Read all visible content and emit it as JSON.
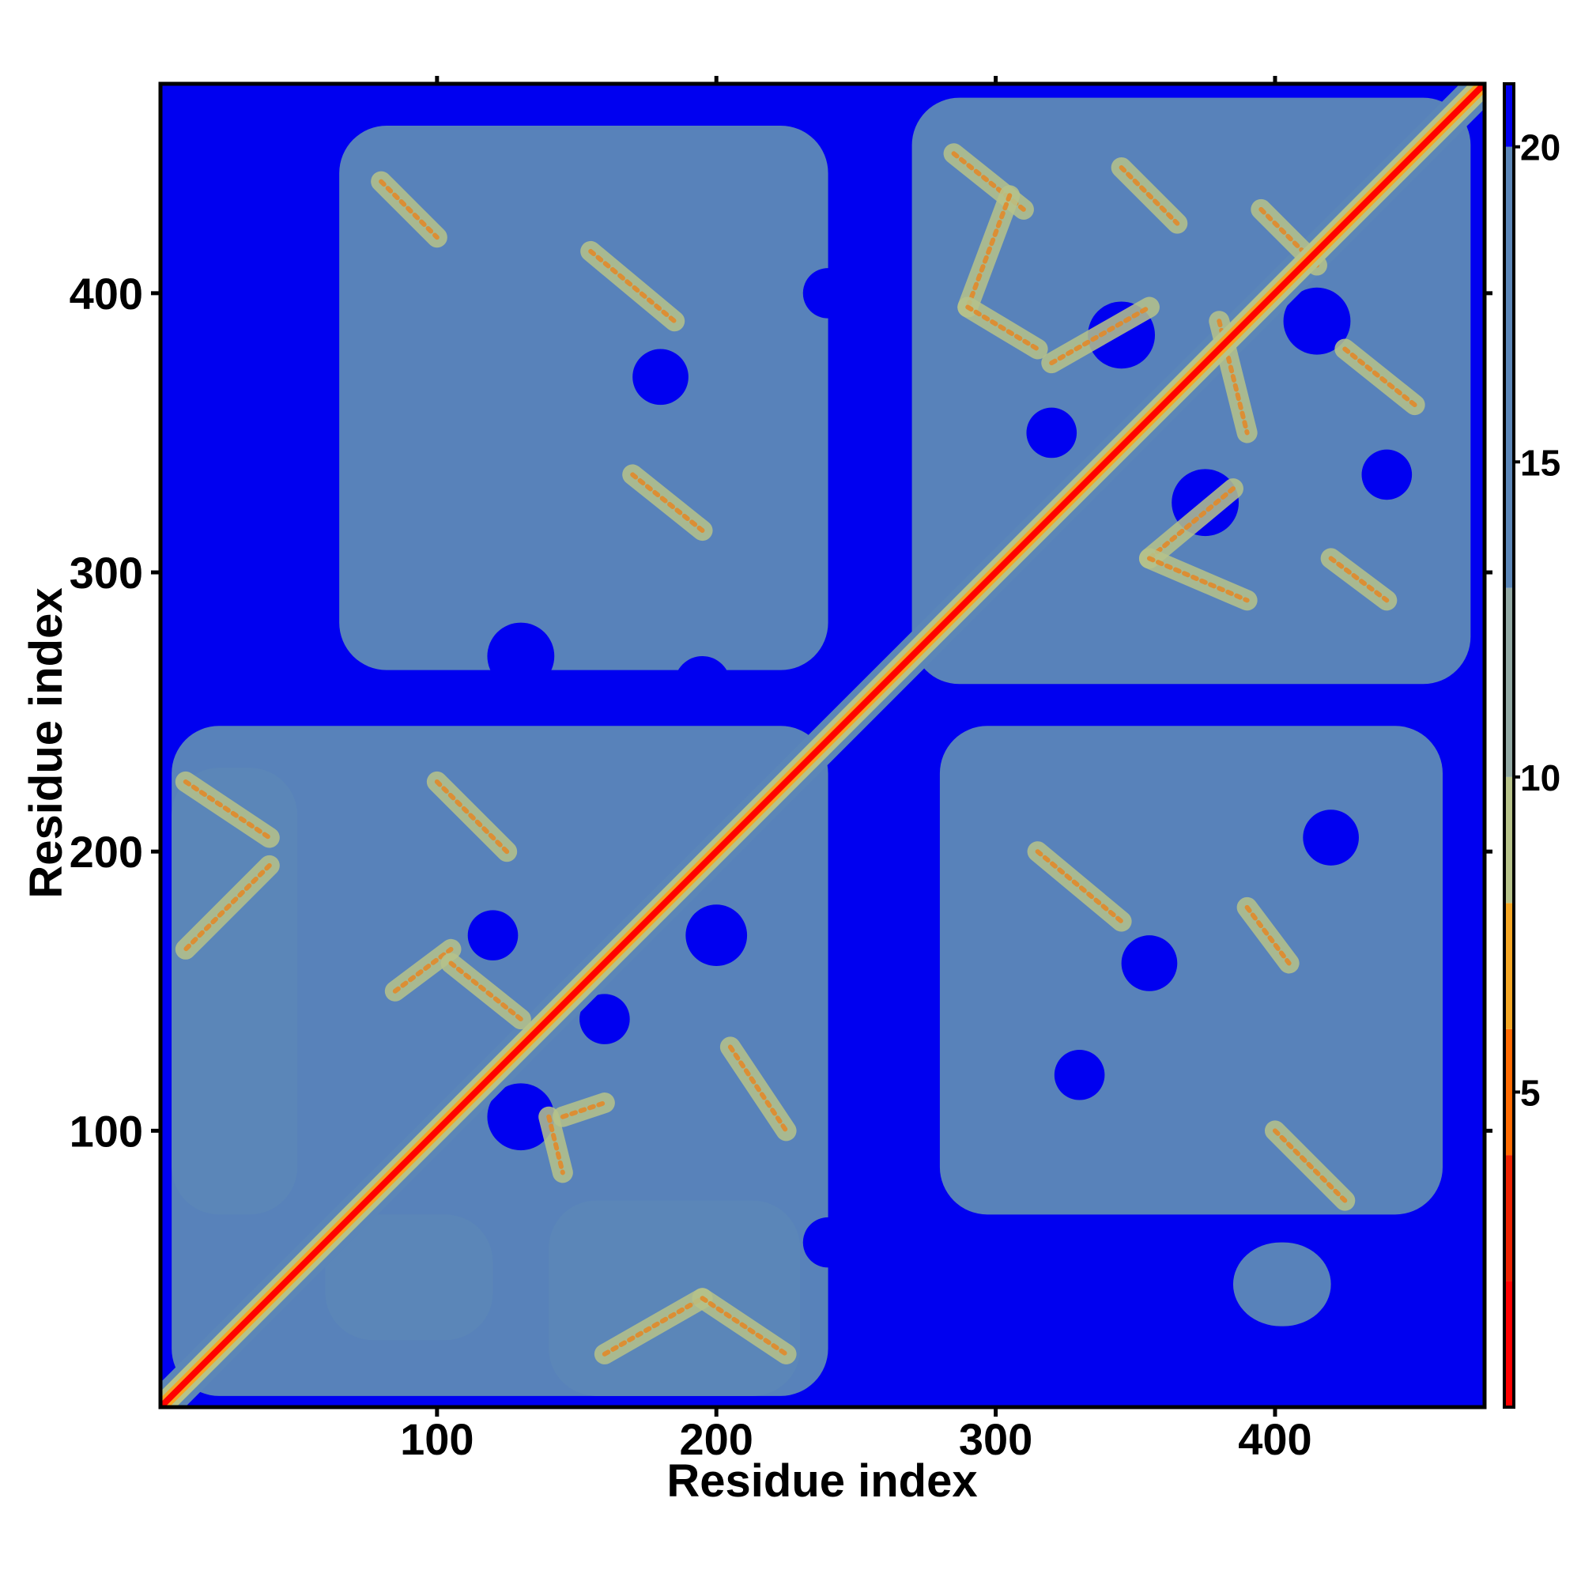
{
  "chart_data": {
    "type": "heatmap",
    "title": "",
    "xlabel": "Residue index",
    "ylabel": "Residue index",
    "xlim": [
      1,
      475
    ],
    "ylim": [
      1,
      475
    ],
    "x_ticks": [
      100,
      200,
      300,
      400
    ],
    "y_ticks": [
      100,
      200,
      300,
      400
    ],
    "colorbar": {
      "range": [
        0,
        21
      ],
      "ticks": [
        5,
        10,
        15,
        20
      ],
      "colors": [
        {
          "from": 0,
          "to": 2,
          "color": "#ff0000"
        },
        {
          "from": 2,
          "to": 4,
          "color": "#ee2200"
        },
        {
          "from": 4,
          "to": 6,
          "color": "#ff6a00"
        },
        {
          "from": 6,
          "to": 8,
          "color": "#f5a623"
        },
        {
          "from": 8,
          "to": 10,
          "color": "#b7c38a"
        },
        {
          "from": 10,
          "to": 13,
          "color": "#92a9a4"
        },
        {
          "from": 13,
          "to": 20,
          "color": "#5b86b8"
        },
        {
          "from": 20,
          "to": 21,
          "color": "#0000f0"
        }
      ]
    },
    "background_color": "#0000f0",
    "contact_color": "#5b86b8",
    "close_color": "#b7c38a",
    "diagonal_color": "#ff0000",
    "domains": [
      {
        "name": "",
        "range": [
          1,
          240
        ]
      },
      {
        "name": "",
        "range": [
          270,
          475
        ]
      }
    ],
    "contact_regions": [
      {
        "x": [
          5,
          240
        ],
        "y": [
          5,
          245
        ]
      },
      {
        "x": [
          270,
          470
        ],
        "y": [
          260,
          470
        ]
      },
      {
        "x": [
          65,
          240
        ],
        "y": [
          265,
          460
        ]
      },
      {
        "x": [
          280,
          460
        ],
        "y": [
          70,
          245
        ]
      },
      {
        "x": [
          140,
          230
        ],
        "y": [
          5,
          75
        ]
      },
      {
        "x": [
          60,
          120
        ],
        "y": [
          25,
          70
        ]
      },
      {
        "x": [
          385,
          420
        ],
        "y": [
          30,
          60
        ]
      },
      {
        "x": [
          5,
          50
        ],
        "y": [
          70,
          230
        ]
      }
    ],
    "contact_bands": [
      {
        "from": [
          10,
          225
        ],
        "to": [
          40,
          205
        ]
      },
      {
        "from": [
          40,
          195
        ],
        "to": [
          10,
          165
        ]
      },
      {
        "from": [
          100,
          225
        ],
        "to": [
          125,
          200
        ]
      },
      {
        "from": [
          85,
          150
        ],
        "to": [
          105,
          165
        ]
      },
      {
        "from": [
          105,
          160
        ],
        "to": [
          130,
          140
        ]
      },
      {
        "from": [
          140,
          105
        ],
        "to": [
          145,
          85
        ]
      },
      {
        "from": [
          145,
          105
        ],
        "to": [
          160,
          110
        ]
      },
      {
        "from": [
          205,
          130
        ],
        "to": [
          225,
          100
        ]
      },
      {
        "from": [
          160,
          20
        ],
        "to": [
          195,
          40
        ]
      },
      {
        "from": [
          195,
          40
        ],
        "to": [
          225,
          20
        ]
      },
      {
        "from": [
          80,
          440
        ],
        "to": [
          100,
          420
        ]
      },
      {
        "from": [
          155,
          415
        ],
        "to": [
          185,
          390
        ]
      },
      {
        "from": [
          170,
          335
        ],
        "to": [
          195,
          315
        ]
      },
      {
        "from": [
          285,
          450
        ],
        "to": [
          310,
          430
        ]
      },
      {
        "from": [
          305,
          435
        ],
        "to": [
          290,
          395
        ]
      },
      {
        "from": [
          290,
          395
        ],
        "to": [
          315,
          380
        ]
      },
      {
        "from": [
          320,
          375
        ],
        "to": [
          355,
          395
        ]
      },
      {
        "from": [
          345,
          445
        ],
        "to": [
          365,
          425
        ]
      },
      {
        "from": [
          395,
          430
        ],
        "to": [
          415,
          410
        ]
      },
      {
        "from": [
          380,
          390
        ],
        "to": [
          390,
          350
        ]
      },
      {
        "from": [
          385,
          330
        ],
        "to": [
          355,
          305
        ]
      },
      {
        "from": [
          355,
          305
        ],
        "to": [
          390,
          290
        ]
      },
      {
        "from": [
          420,
          305
        ],
        "to": [
          440,
          290
        ]
      },
      {
        "from": [
          425,
          380
        ],
        "to": [
          450,
          360
        ]
      },
      {
        "from": [
          315,
          200
        ],
        "to": [
          345,
          175
        ]
      },
      {
        "from": [
          390,
          180
        ],
        "to": [
          405,
          160
        ]
      },
      {
        "from": [
          400,
          100
        ],
        "to": [
          425,
          75
        ]
      }
    ],
    "holes": [
      {
        "x": 130,
        "y": 270,
        "r": 12
      },
      {
        "x": 195,
        "y": 260,
        "r": 10
      },
      {
        "x": 180,
        "y": 370,
        "r": 10
      },
      {
        "x": 240,
        "y": 400,
        "r": 9
      },
      {
        "x": 130,
        "y": 105,
        "r": 12
      },
      {
        "x": 120,
        "y": 170,
        "r": 9
      },
      {
        "x": 200,
        "y": 170,
        "r": 11
      },
      {
        "x": 160,
        "y": 140,
        "r": 9
      },
      {
        "x": 345,
        "y": 385,
        "r": 12
      },
      {
        "x": 415,
        "y": 390,
        "r": 12
      },
      {
        "x": 375,
        "y": 325,
        "r": 12
      },
      {
        "x": 440,
        "y": 335,
        "r": 9
      },
      {
        "x": 320,
        "y": 350,
        "r": 9
      },
      {
        "x": 355,
        "y": 160,
        "r": 10
      },
      {
        "x": 420,
        "y": 205,
        "r": 10
      },
      {
        "x": 330,
        "y": 120,
        "r": 9
      },
      {
        "x": 240,
        "y": 60,
        "r": 9
      }
    ]
  }
}
